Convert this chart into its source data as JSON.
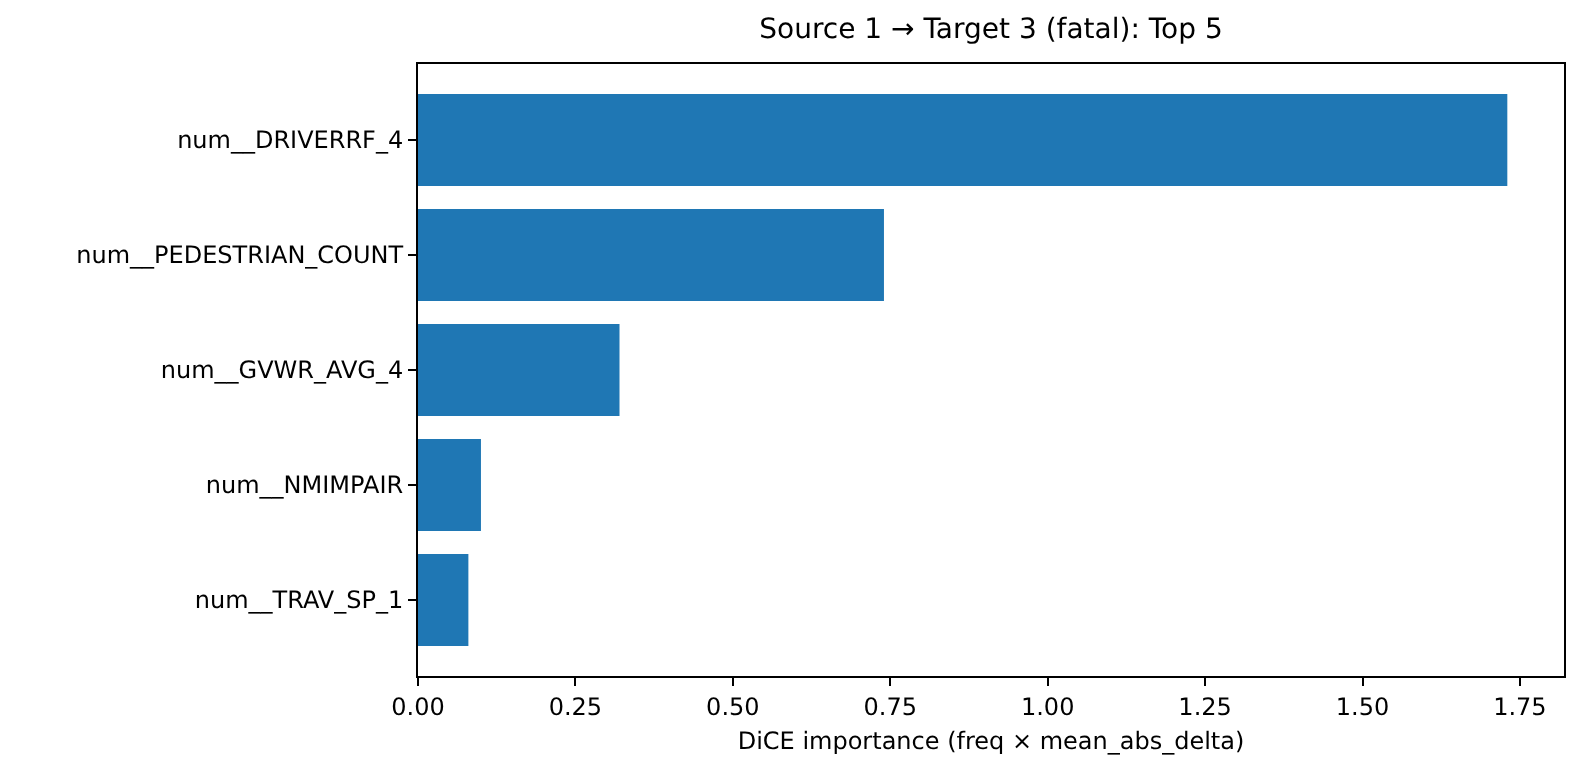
{
  "chart_data": {
    "type": "bar",
    "orientation": "horizontal",
    "title": "Source 1 → Target 3 (fatal): Top 5",
    "xlabel": "DiCE importance (freq × mean_abs_delta)",
    "categories": [
      "num__DRIVERRF_4",
      "num__PEDESTRIAN_COUNT",
      "num__GVWR_AVG_4",
      "num__NMIMPAIR",
      "num__TRAV_SP_1"
    ],
    "values": [
      1.73,
      0.74,
      0.32,
      0.1,
      0.08
    ],
    "color": "#1f77b4",
    "xlim": [
      0,
      1.82
    ],
    "xticks": [
      {
        "value": 0,
        "label": "0.00"
      },
      0.25,
      {
        "value": 0.5,
        "label": "0.50"
      },
      0.75,
      {
        "value": 1,
        "label": "1.00"
      },
      1.25,
      {
        "value": 1.5,
        "label": "1.50"
      },
      1.75
    ]
  }
}
